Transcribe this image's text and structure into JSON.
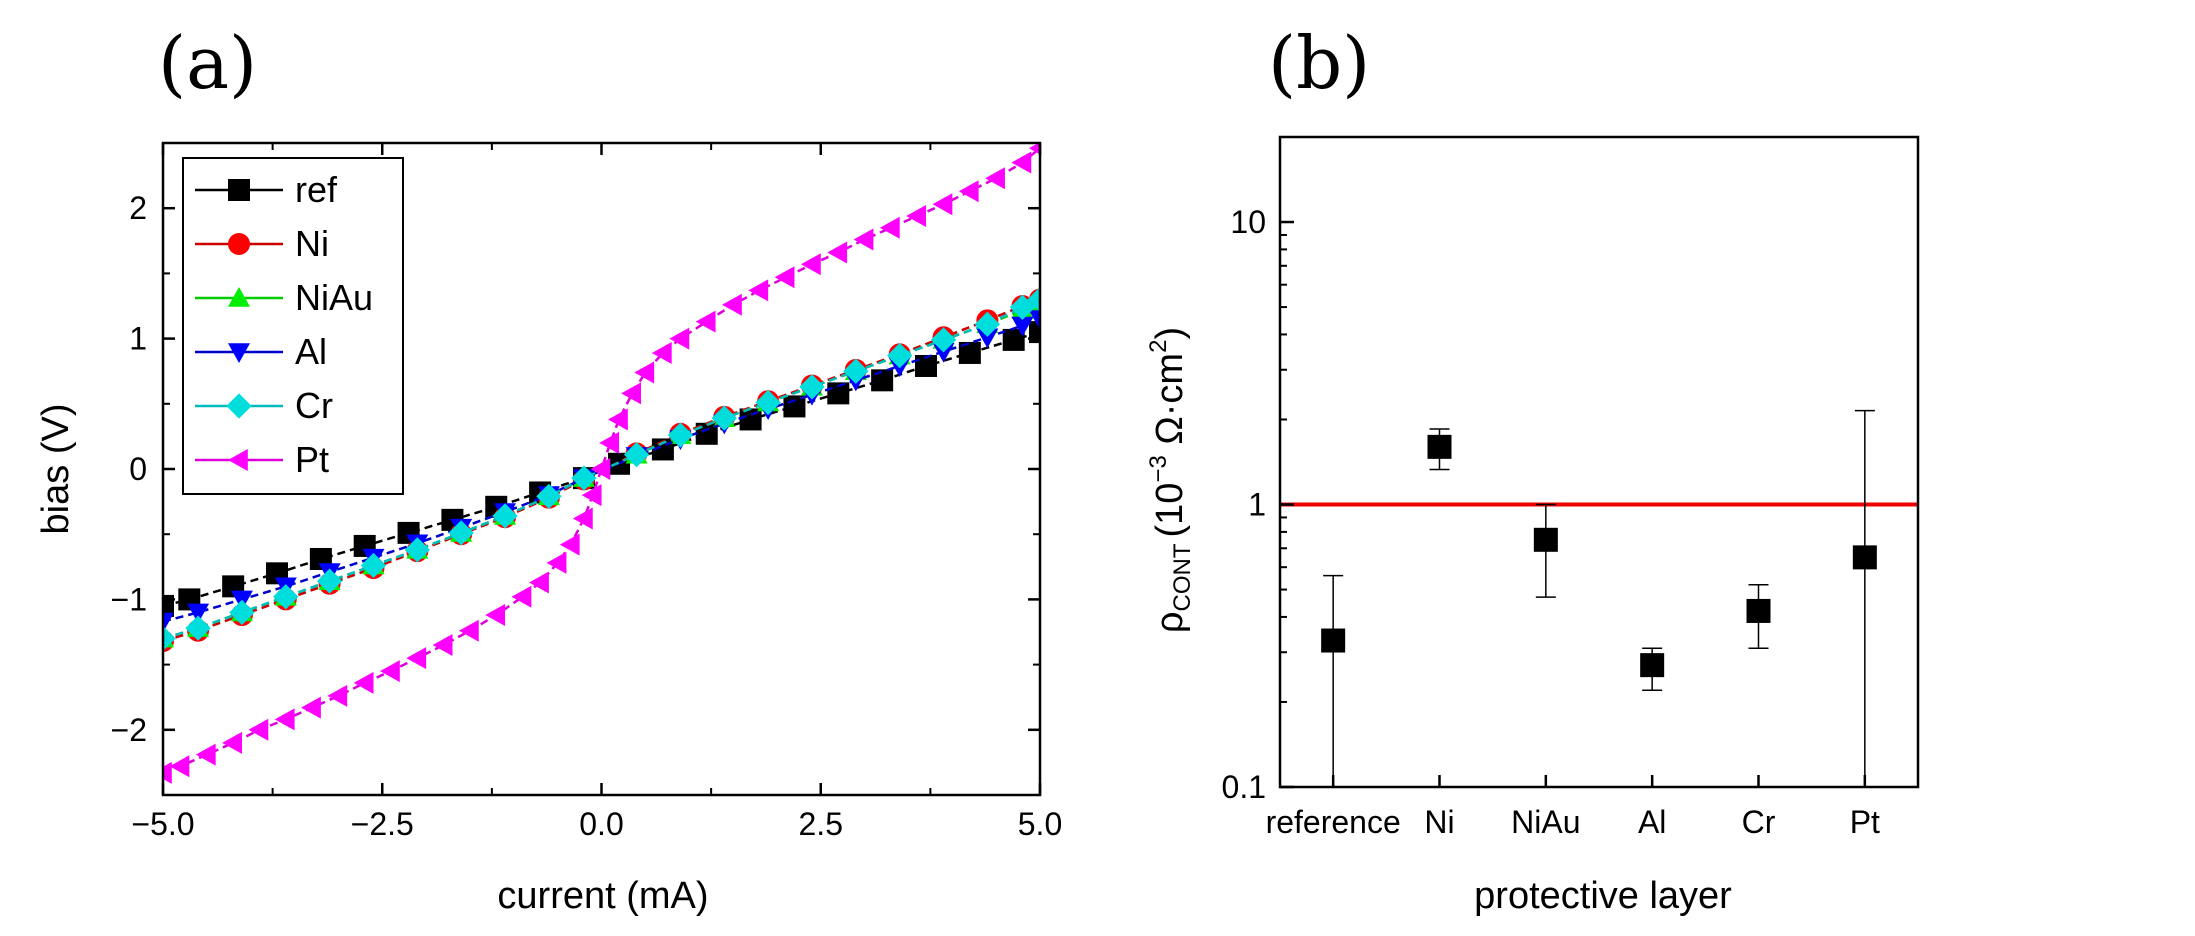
{
  "chart_data": [
    {
      "panel_label": "(a)",
      "type": "line",
      "xlabel": "current (mA)",
      "ylabel": "bias (V)",
      "xlim": [
        -5,
        5
      ],
      "ylim": [
        -2.5,
        2.5
      ],
      "xticks": [
        "−5.0",
        "−2.5",
        "0.0",
        "2.5",
        "5.0"
      ],
      "xtick_values": [
        -5,
        -2.5,
        0,
        2.5,
        5
      ],
      "yticks": [
        "−2",
        "−1",
        "0",
        "1",
        "2"
      ],
      "ytick_values": [
        -2,
        -1,
        0,
        1,
        2
      ],
      "legend_position": "top-left",
      "series": [
        {
          "name": "ref",
          "marker": "square",
          "color": "#000000",
          "line_color": "#000000",
          "points": [
            [
              -5,
              -1.05
            ],
            [
              -4.7,
              -1.0
            ],
            [
              -4.2,
              -0.9
            ],
            [
              -3.7,
              -0.8
            ],
            [
              -3.2,
              -0.69
            ],
            [
              -2.7,
              -0.59
            ],
            [
              -2.2,
              -0.49
            ],
            [
              -1.7,
              -0.39
            ],
            [
              -1.2,
              -0.29
            ],
            [
              -0.7,
              -0.18
            ],
            [
              -0.2,
              -0.07
            ],
            [
              0.2,
              0.04
            ],
            [
              0.7,
              0.15
            ],
            [
              1.2,
              0.27
            ],
            [
              1.7,
              0.38
            ],
            [
              2.2,
              0.48
            ],
            [
              2.7,
              0.58
            ],
            [
              3.2,
              0.68
            ],
            [
              3.7,
              0.79
            ],
            [
              4.2,
              0.89
            ],
            [
              4.7,
              0.99
            ],
            [
              5,
              1.05
            ]
          ]
        },
        {
          "name": "Ni",
          "marker": "circle",
          "color": "#ff0000",
          "line_color": "#cc0000",
          "points": [
            [
              -5,
              -1.32
            ],
            [
              -4.6,
              -1.24
            ],
            [
              -4.1,
              -1.12
            ],
            [
              -3.6,
              -1.0
            ],
            [
              -3.1,
              -0.88
            ],
            [
              -2.6,
              -0.76
            ],
            [
              -2.1,
              -0.63
            ],
            [
              -1.6,
              -0.5
            ],
            [
              -1.1,
              -0.37
            ],
            [
              -0.6,
              -0.22
            ],
            [
              -0.2,
              -0.08
            ],
            [
              0.4,
              0.12
            ],
            [
              0.9,
              0.27
            ],
            [
              1.4,
              0.4
            ],
            [
              1.9,
              0.52
            ],
            [
              2.4,
              0.64
            ],
            [
              2.9,
              0.76
            ],
            [
              3.4,
              0.88
            ],
            [
              3.9,
              1.01
            ],
            [
              4.4,
              1.14
            ],
            [
              4.8,
              1.25
            ],
            [
              5,
              1.3
            ]
          ]
        },
        {
          "name": "NiAu",
          "marker": "triangle-up",
          "color": "#00ee00",
          "line_color": "#00cc00",
          "points": [
            [
              -5,
              -1.3
            ],
            [
              -4.6,
              -1.22
            ],
            [
              -4.1,
              -1.1
            ],
            [
              -3.6,
              -0.98
            ],
            [
              -3.1,
              -0.86
            ],
            [
              -2.6,
              -0.74
            ],
            [
              -2.1,
              -0.62
            ],
            [
              -1.6,
              -0.49
            ],
            [
              -1.1,
              -0.36
            ],
            [
              -0.6,
              -0.21
            ],
            [
              -0.2,
              -0.07
            ],
            [
              0.4,
              0.11
            ],
            [
              0.9,
              0.26
            ],
            [
              1.4,
              0.39
            ],
            [
              1.9,
              0.51
            ],
            [
              2.4,
              0.63
            ],
            [
              2.9,
              0.75
            ],
            [
              3.4,
              0.87
            ],
            [
              3.9,
              0.99
            ],
            [
              4.4,
              1.11
            ],
            [
              4.8,
              1.22
            ],
            [
              5,
              1.27
            ]
          ]
        },
        {
          "name": "Al",
          "marker": "triangle-down",
          "color": "#0000ff",
          "line_color": "#0000cc",
          "points": [
            [
              -5,
              -1.17
            ],
            [
              -4.6,
              -1.1
            ],
            [
              -4.1,
              -1.0
            ],
            [
              -3.6,
              -0.9
            ],
            [
              -3.1,
              -0.79
            ],
            [
              -2.6,
              -0.68
            ],
            [
              -2.1,
              -0.57
            ],
            [
              -1.6,
              -0.45
            ],
            [
              -1.1,
              -0.33
            ],
            [
              -0.6,
              -0.2
            ],
            [
              -0.2,
              -0.07
            ],
            [
              0.4,
              0.1
            ],
            [
              0.9,
              0.23
            ],
            [
              1.4,
              0.35
            ],
            [
              1.9,
              0.46
            ],
            [
              2.4,
              0.57
            ],
            [
              2.9,
              0.68
            ],
            [
              3.4,
              0.79
            ],
            [
              3.9,
              0.9
            ],
            [
              4.4,
              1.01
            ],
            [
              4.8,
              1.1
            ],
            [
              5,
              1.15
            ]
          ]
        },
        {
          "name": "Cr",
          "marker": "diamond",
          "color": "#00dddd",
          "line_color": "#00bbbb",
          "points": [
            [
              -5,
              -1.3
            ],
            [
              -4.6,
              -1.22
            ],
            [
              -4.1,
              -1.1
            ],
            [
              -3.6,
              -0.98
            ],
            [
              -3.1,
              -0.86
            ],
            [
              -2.6,
              -0.74
            ],
            [
              -2.1,
              -0.62
            ],
            [
              -1.6,
              -0.49
            ],
            [
              -1.1,
              -0.36
            ],
            [
              -0.6,
              -0.21
            ],
            [
              -0.2,
              -0.07
            ],
            [
              0.4,
              0.11
            ],
            [
              0.9,
              0.26
            ],
            [
              1.4,
              0.39
            ],
            [
              1.9,
              0.51
            ],
            [
              2.4,
              0.63
            ],
            [
              2.9,
              0.75
            ],
            [
              3.4,
              0.87
            ],
            [
              3.9,
              0.99
            ],
            [
              4.4,
              1.11
            ],
            [
              4.8,
              1.24
            ],
            [
              5,
              1.3
            ]
          ]
        },
        {
          "name": "Pt",
          "marker": "triangle-left",
          "color": "#ff00ff",
          "line_color": "#dd00dd",
          "points": [
            [
              -5,
              -2.33
            ],
            [
              -4.8,
              -2.28
            ],
            [
              -4.5,
              -2.19
            ],
            [
              -4.2,
              -2.1
            ],
            [
              -3.9,
              -2.0
            ],
            [
              -3.6,
              -1.92
            ],
            [
              -3.3,
              -1.83
            ],
            [
              -3.0,
              -1.74
            ],
            [
              -2.7,
              -1.64
            ],
            [
              -2.4,
              -1.55
            ],
            [
              -2.1,
              -1.45
            ],
            [
              -1.8,
              -1.35
            ],
            [
              -1.5,
              -1.24
            ],
            [
              -1.2,
              -1.12
            ],
            [
              -0.9,
              -0.98
            ],
            [
              -0.7,
              -0.87
            ],
            [
              -0.5,
              -0.72
            ],
            [
              -0.35,
              -0.58
            ],
            [
              -0.2,
              -0.38
            ],
            [
              -0.1,
              -0.2
            ],
            [
              0.0,
              0.0
            ],
            [
              0.1,
              0.2
            ],
            [
              0.2,
              0.38
            ],
            [
              0.35,
              0.58
            ],
            [
              0.5,
              0.74
            ],
            [
              0.7,
              0.89
            ],
            [
              0.9,
              1.0
            ],
            [
              1.2,
              1.13
            ],
            [
              1.5,
              1.26
            ],
            [
              1.8,
              1.37
            ],
            [
              2.1,
              1.47
            ],
            [
              2.4,
              1.57
            ],
            [
              2.7,
              1.66
            ],
            [
              3.0,
              1.76
            ],
            [
              3.3,
              1.85
            ],
            [
              3.6,
              1.94
            ],
            [
              3.9,
              2.03
            ],
            [
              4.2,
              2.13
            ],
            [
              4.5,
              2.23
            ],
            [
              4.8,
              2.35
            ],
            [
              5,
              2.46
            ]
          ]
        }
      ]
    },
    {
      "panel_label": "(b)",
      "type": "scatter",
      "xlabel": "protective layer",
      "ylabel_main": "ρ",
      "ylabel_sub": "CONT",
      "ylabel_paren_open": "(10",
      "ylabel_exp": "−3",
      "ylabel_unit": " Ω·cm",
      "ylabel_unit_exp": "2",
      "ylabel_paren_close": ")",
      "yscale": "log",
      "ylim": [
        0.1,
        20
      ],
      "yticks": [
        "0.1",
        "1",
        "10"
      ],
      "ytick_values": [
        0.1,
        1,
        10
      ],
      "categories": [
        "reference",
        "Ni",
        "NiAu",
        "Al",
        "Cr",
        "Pt"
      ],
      "values": [
        0.33,
        1.6,
        0.75,
        0.27,
        0.42,
        0.65
      ],
      "error_low": [
        0.09,
        1.33,
        0.47,
        0.22,
        0.31,
        0.1
      ],
      "error_high": [
        0.56,
        1.85,
        1.0,
        0.31,
        0.52,
        2.15
      ],
      "marker_color": "#000000",
      "reference_line": {
        "value": 1,
        "color": "#ee0000"
      }
    }
  ]
}
